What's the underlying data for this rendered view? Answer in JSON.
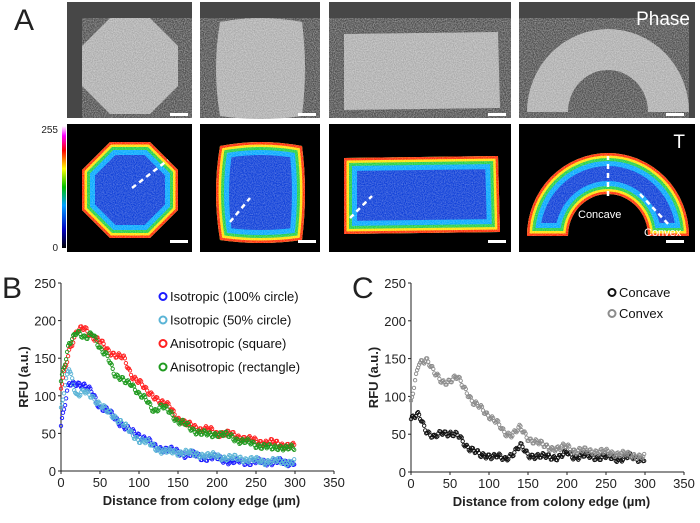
{
  "panels": {
    "a": "A",
    "b": "B",
    "c": "C"
  },
  "images": {
    "phase_label": "Phase",
    "heat_label": "T",
    "colorbar_max": "255",
    "colorbar_min": "0",
    "concave_label": "Concave",
    "convex_label": "Convex"
  },
  "chart_data": [
    {
      "type": "scatter",
      "panel": "B",
      "xlabel": "Distance from colony edge (µm)",
      "ylabel": "RFU (a.u.)",
      "xlim": [
        0,
        350
      ],
      "ylim": [
        0,
        250
      ],
      "xticks": [
        "0",
        "50",
        "100",
        "150",
        "200",
        "250",
        "300",
        "350"
      ],
      "yticks": [
        "0",
        "50",
        "100",
        "150",
        "200",
        "250"
      ],
      "legend_position": "top-right",
      "x": [
        0,
        10,
        20,
        30,
        40,
        50,
        60,
        70,
        80,
        90,
        100,
        110,
        120,
        130,
        140,
        150,
        160,
        170,
        180,
        190,
        200,
        210,
        220,
        230,
        240,
        250,
        260,
        270,
        280,
        290,
        300
      ],
      "series": [
        {
          "name": "Isotropic (100% circle)",
          "color": "#1a1aff",
          "values": [
            60,
            115,
            118,
            112,
            105,
            85,
            80,
            70,
            60,
            52,
            48,
            42,
            32,
            30,
            28,
            25,
            22,
            22,
            18,
            18,
            17,
            15,
            12,
            13,
            12,
            12,
            12,
            12,
            12,
            11,
            12
          ]
        },
        {
          "name": "Isotropic (50% circle)",
          "color": "#5ab4d6",
          "values": [
            80,
            140,
            100,
            105,
            100,
            88,
            78,
            72,
            62,
            50,
            42,
            38,
            32,
            27,
            25,
            25,
            25,
            22,
            22,
            20,
            20,
            18,
            17,
            17,
            15,
            14,
            13,
            13,
            13,
            12,
            12
          ]
        },
        {
          "name": "Anisotropic (square)",
          "color": "#ff2020",
          "values": [
            110,
            160,
            185,
            190,
            180,
            172,
            160,
            155,
            150,
            128,
            120,
            105,
            100,
            90,
            85,
            70,
            62,
            60,
            55,
            55,
            50,
            50,
            48,
            45,
            42,
            40,
            38,
            38,
            36,
            34,
            32
          ]
        },
        {
          "name": "Anisotropic (rectangle)",
          "color": "#1f9a1f",
          "values": [
            120,
            170,
            183,
            178,
            185,
            160,
            155,
            125,
            120,
            118,
            100,
            95,
            80,
            85,
            80,
            65,
            62,
            55,
            50,
            48,
            50,
            48,
            45,
            40,
            38,
            35,
            33,
            30,
            33,
            30,
            30
          ]
        }
      ]
    },
    {
      "type": "scatter",
      "panel": "C",
      "xlabel": "Distance from colony edge (µm)",
      "ylabel": "RFU (a.u.)",
      "xlim": [
        0,
        350
      ],
      "ylim": [
        0,
        250
      ],
      "xticks": [
        "0",
        "50",
        "100",
        "150",
        "200",
        "250",
        "300",
        "350"
      ],
      "yticks": [
        "0",
        "50",
        "100",
        "150",
        "200",
        "250"
      ],
      "legend_position": "top-right",
      "x": [
        0,
        10,
        20,
        30,
        40,
        50,
        60,
        70,
        80,
        90,
        100,
        110,
        120,
        130,
        140,
        150,
        160,
        170,
        180,
        190,
        200,
        210,
        220,
        230,
        240,
        250,
        260,
        270,
        280,
        290,
        300
      ],
      "series": [
        {
          "name": "Concave",
          "color": "#111111",
          "values": [
            70,
            75,
            55,
            45,
            52,
            52,
            48,
            35,
            30,
            20,
            22,
            22,
            15,
            25,
            35,
            22,
            22,
            20,
            20,
            20,
            25,
            20,
            22,
            20,
            20,
            20,
            18,
            18,
            20,
            18,
            18
          ]
        },
        {
          "name": "Convex",
          "color": "#8c8c8c",
          "values": [
            90,
            145,
            150,
            130,
            120,
            120,
            125,
            110,
            90,
            85,
            75,
            65,
            52,
            50,
            58,
            45,
            40,
            35,
            32,
            30,
            35,
            28,
            28,
            28,
            27,
            26,
            25,
            24,
            22,
            22,
            20
          ]
        }
      ]
    }
  ]
}
